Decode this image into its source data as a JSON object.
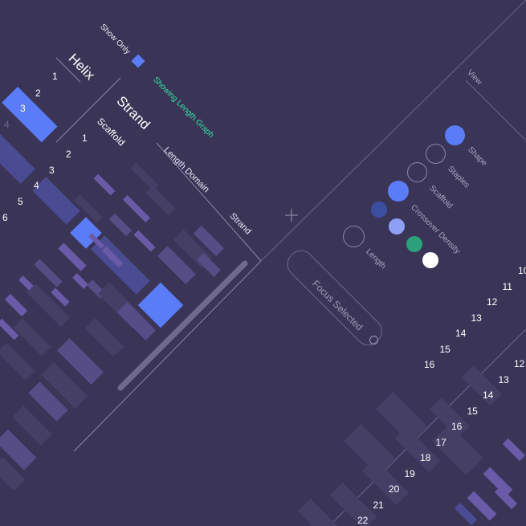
{
  "left_panel": {
    "show_only_label": "Show Only",
    "showing_label": "Showing Length Graph",
    "helix_header": "Helix",
    "helix_rows": [
      "1",
      "2",
      "3",
      "4"
    ],
    "strand_header": "Strand",
    "scaffold_header": "Scaffold",
    "scaffold_rows": [
      "1",
      "2",
      "3",
      "4",
      "5",
      "6"
    ],
    "length_domain_header": "Length Domain",
    "strand_col_header": "Strand",
    "selected_helix": "3",
    "highlight_color": "#5b7cf7",
    "accent_text_color": "#34e0a1"
  },
  "view_panel": {
    "title": "View",
    "options": [
      {
        "label": "Shape",
        "checked": true
      },
      {
        "label": "Staples",
        "checked": false
      },
      {
        "label": "Scaffold",
        "checked": false
      },
      {
        "label": "Crossover Density",
        "checked": true
      },
      {
        "label": "Length",
        "checked": false
      }
    ],
    "swatches": [
      "#3b4fa0",
      "#8ea0f5",
      "#2ca07a",
      "#ffffff"
    ],
    "focus_button": "Focus Selected"
  },
  "right_panel": {
    "rows_a": [
      "10",
      "11",
      "12",
      "13",
      "14",
      "15",
      "16"
    ],
    "rows_b": [
      "12",
      "13",
      "14",
      "15",
      "16",
      "17",
      "18",
      "19",
      "20",
      "21",
      "22"
    ]
  }
}
